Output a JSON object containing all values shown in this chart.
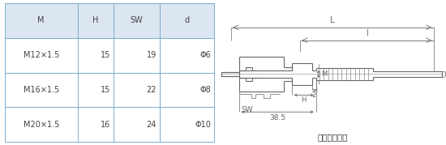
{
  "table": {
    "headers": [
      "M",
      "H",
      "SW",
      "d"
    ],
    "rows": [
      [
        "M12×1.5",
        "15",
        "19",
        "Φ6"
      ],
      [
        "M16×1.5",
        "15",
        "22",
        "Φ8"
      ],
      [
        "M20×1.5",
        "16",
        "24",
        "Φ10"
      ]
    ],
    "header_bg": "#dce6f1",
    "cell_bg": "#ffffff",
    "border_color": "#7aadcf",
    "text_color": "#444444",
    "font_size": 7.0
  },
  "drawing": {
    "title": "卡套螺紋接頭",
    "title_fontsize": 7.5,
    "line_color": "#666666",
    "dim_color": "#555555"
  },
  "bg_color": "#ffffff"
}
